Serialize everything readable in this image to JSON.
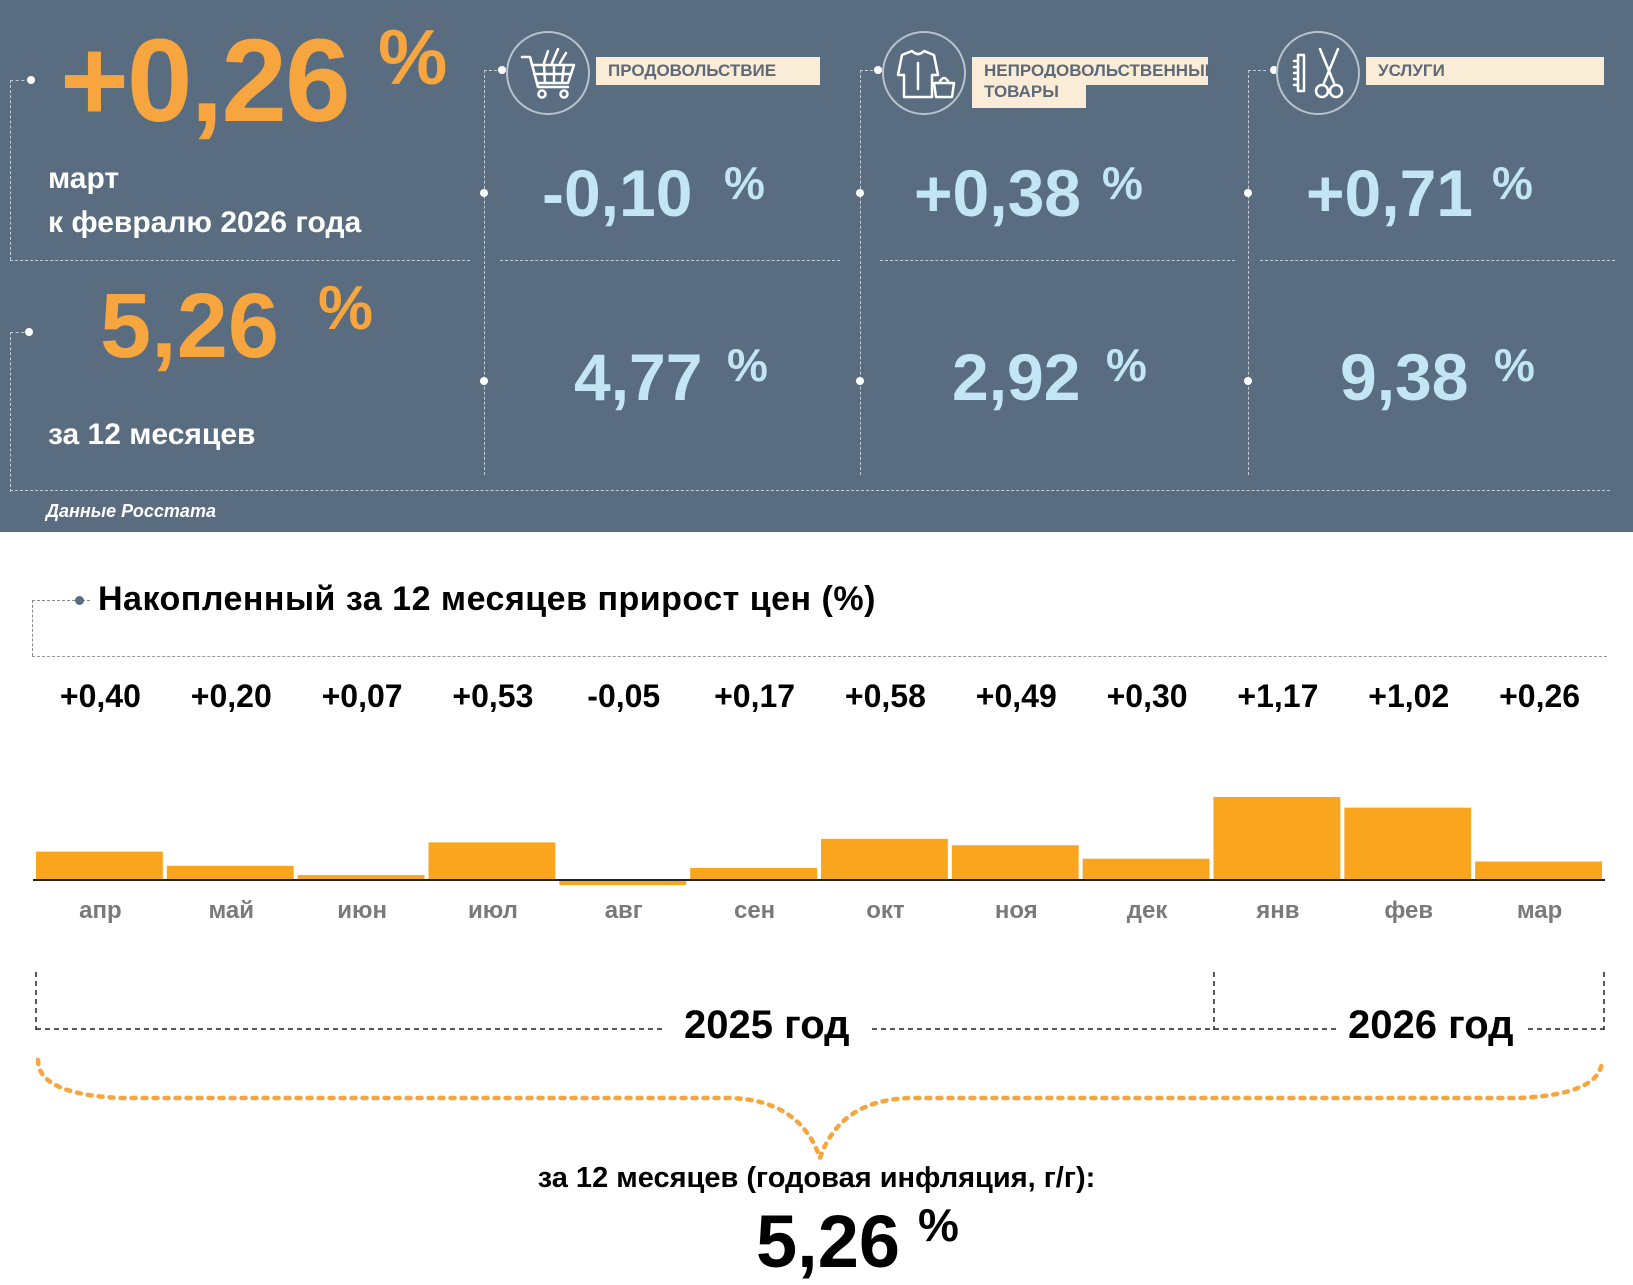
{
  "summary": {
    "month_value": "+0,26",
    "month_unit": "%",
    "month_caption_line1": "март",
    "month_caption_line2": "к февралю 2026 года",
    "year_value": "5,26",
    "year_unit": "%",
    "year_caption": "за 12 месяцев",
    "source": "Данные Росстата"
  },
  "categories": [
    {
      "label": "ПРОДОВОЛЬСТВИЕ",
      "icon": "shopping-cart-icon",
      "month_value": "-0,10",
      "year_value": "4,77",
      "unit": "%"
    },
    {
      "label_line1": "НЕПРОДОВОЛЬСТВЕННЫЕ",
      "label_line2": "ТОВАРЫ",
      "icon": "clothing-icon",
      "month_value": "+0,38",
      "year_value": "2,92",
      "unit": "%"
    },
    {
      "label": "УСЛУГИ",
      "icon": "comb-scissors-icon",
      "month_value": "+0,71",
      "year_value": "9,38",
      "unit": "%"
    }
  ],
  "colors": {
    "panel": "#596c80",
    "accent_orange": "#f6a53f",
    "value_blue": "#c2e6f4",
    "bar": "#faa51e"
  },
  "chart_data": {
    "type": "bar",
    "title": "Накопленный за 12 месяцев прирост цен (%)",
    "categories": [
      "апр",
      "май",
      "июн",
      "июл",
      "авг",
      "сен",
      "окт",
      "ноя",
      "дек",
      "янв",
      "фев",
      "мар"
    ],
    "values": [
      0.4,
      0.2,
      0.07,
      0.53,
      -0.05,
      0.17,
      0.58,
      0.49,
      0.3,
      1.17,
      1.02,
      0.26
    ],
    "value_labels": [
      "+0,40",
      "+0,20",
      "+0,07",
      "+0,53",
      "-0,05",
      "+0,17",
      "+0,58",
      "+0,49",
      "+0,30",
      "+1,17",
      "+1,02",
      "+0,26"
    ],
    "year_groups": [
      {
        "label": "2025 год",
        "from": "апр",
        "to": "дек"
      },
      {
        "label": "2026 год",
        "from": "янв",
        "to": "мар"
      }
    ],
    "annual_caption": "за 12 месяцев (годовая инфляция, г/г):",
    "annual_value": "5,26",
    "annual_unit": "%",
    "ylim": [
      -0.05,
      1.17
    ]
  }
}
